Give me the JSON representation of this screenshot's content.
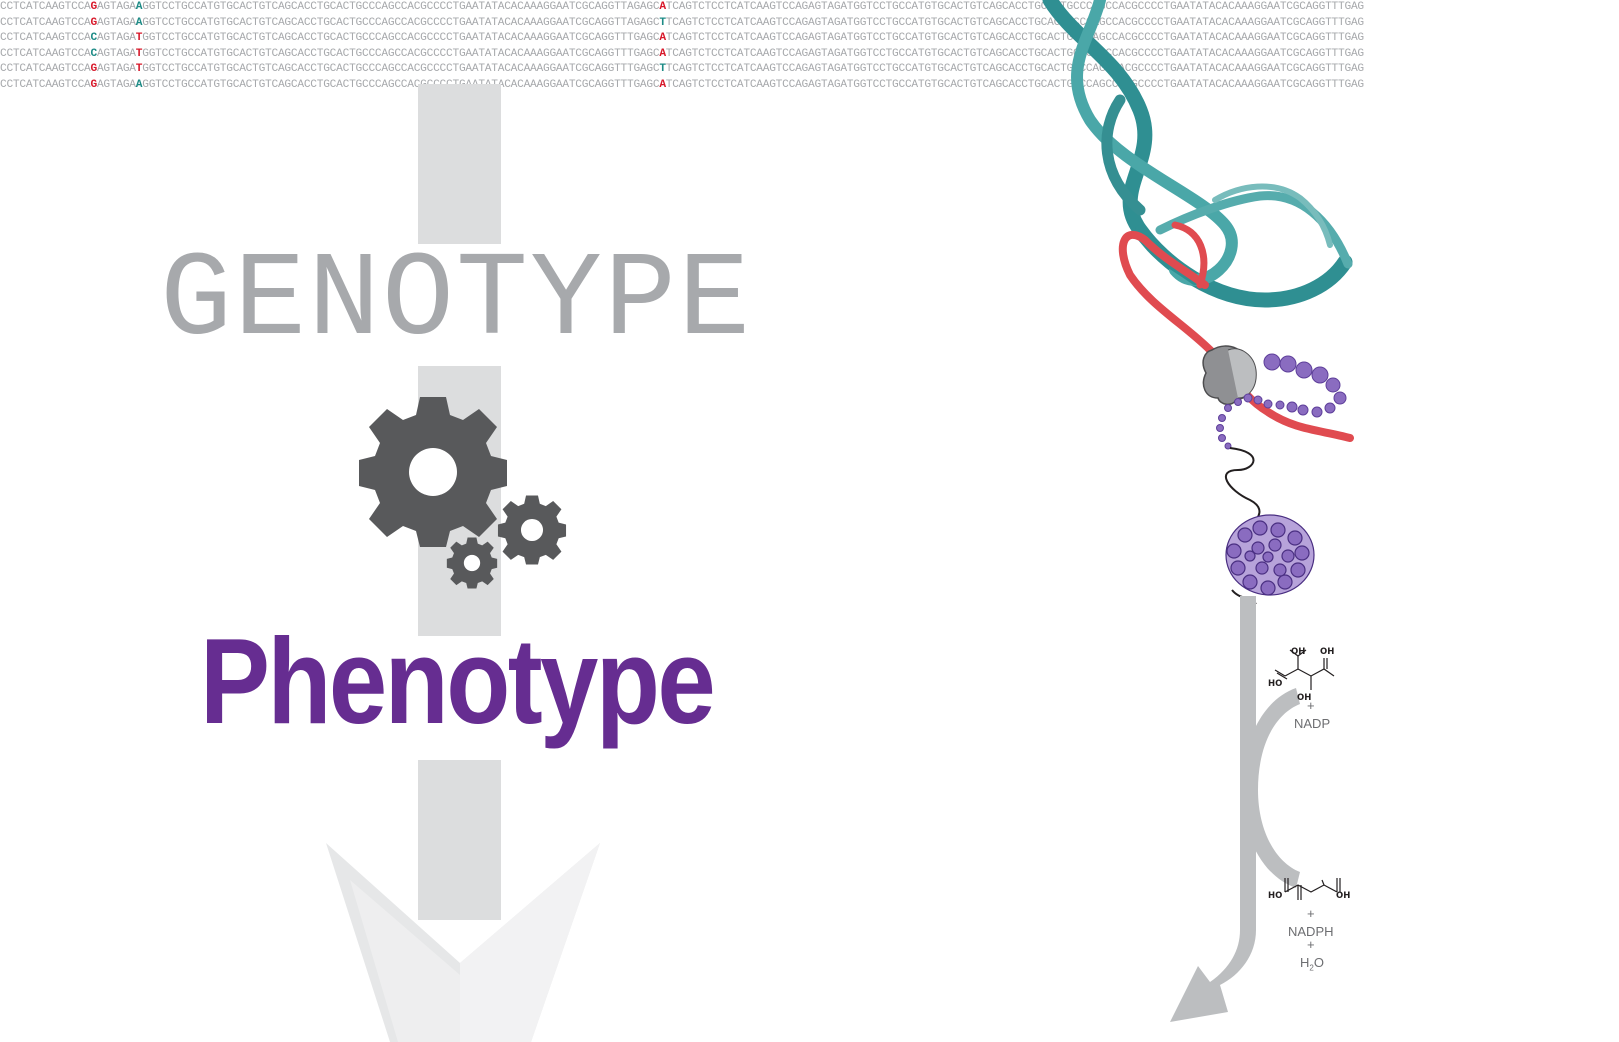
{
  "sequence_lines": [
    {
      "pre": "CCTCATCAAGTCCA",
      "m1": "G",
      "mid": "AGTAGA",
      "m2": "A",
      "post": "GGTCCTGCCATGTGCACTGTCAGCACCTGCACTGCCCAGCCACGCCCCTGAATATACACAAAGGAATCGCAGGTTAGAGC",
      "m3": "A",
      "tail": "TCAGTCTCCTCATCAAGTCCAGAGTAGATGGTCCTGCCATGTGCACTGTCAGCACCTGCACTGCCCAGCCACGCCCCTGAATATACACAAAGGAATCGCAGGTTTGAG"
    },
    {
      "pre": "CCTCATCAAGTCCA",
      "m1": "G",
      "mid": "AGTAGA",
      "m2": "A",
      "post": "GGTCCTGCCATGTGCACTGTCAGCACCTGCACTGCCCAGCCACGCCCCTGAATATACACAAAGGAATCGCAGGTTAGAGC",
      "m3": "T",
      "tail": "TCAGTCTCCTCATCAAGTCCAGAGTAGATGGTCCTGCCATGTGCACTGTCAGCACCTGCACTGCCCAGCCACGCCCCTGAATATACACAAAGGAATCGCAGGTTTGAG"
    },
    {
      "pre": "CCTCATCAAGTCCA",
      "m1": "C",
      "mid": "AGTAGA",
      "m2": "T",
      "post": "GGTCCTGCCATGTGCACTGTCAGCACCTGCACTGCCCAGCCACGCCCCTGAATATACACAAAGGAATCGCAGGTTTGAGC",
      "m3": "A",
      "tail": "TCAGTCTCCTCATCAAGTCCAGAGTAGATGGTCCTGCCATGTGCACTGTCAGCACCTGCACTGCCCAGCCACGCCCCTGAATATACACAAAGGAATCGCAGGTTTGAG"
    },
    {
      "pre": "CCTCATCAAGTCCA",
      "m1": "C",
      "mid": "AGTAGA",
      "m2": "T",
      "post": "GGTCCTGCCATGTGCACTGTCAGCACCTGCACTGCCCAGCCACGCCCCTGAATATACACAAAGGAATCGCAGGTTTGAGC",
      "m3": "A",
      "tail": "TCAGTCTCCTCATCAAGTCCAGAGTAGATGGTCCTGCCATGTGCACTGTCAGCACCTGCACTGCCCAGCCACGCCCCTGAATATACACAAAGGAATCGCAGGTTTGAG"
    },
    {
      "pre": "CCTCATCAAGTCCA",
      "m1": "G",
      "mid": "AGTAGA",
      "m2": "T",
      "post": "GGTCCTGCCATGTGCACTGTCAGCACCTGCACTGCCCAGCCACGCCCCTGAATATACACAAAGGAATCGCAGGTTTGAGC",
      "m3": "T",
      "tail": "TCAGTCTCCTCATCAAGTCCAGAGTAGATGGTCCTGCCATGTGCACTGTCAGCACCTGCACTGCCCAGCCACGCCCCTGAATATACACAAAGGAATCGCAGGTTTGAG"
    },
    {
      "pre": "CCTCATCAAGTCCA",
      "m1": "G",
      "mid": "AGTAGA",
      "m2": "A",
      "post": "GGTCCTGCCATGTGCACTGTCAGCACCTGCACTGCCCAGCCACGCCCCTGAATATACACAAAGGAATCGCAGGTTTGAGC",
      "m3": "A",
      "tail": "TCAGTCTCCTCATCAAGTCCAGAGTAGATGGTCCTGCCATGTGCACTGTCAGCACCTGCACTGCCCAGCCACGCCCCTGAATATACACAAAGGAATCGCAGGTTTGAG"
    }
  ],
  "colors": {
    "sequence_text": "#a7a9ac",
    "variant_red": "#d7182a",
    "variant_teal": "#1c8a85",
    "genotype_title": "#a7a9ac",
    "phenotype_title": "#662d91",
    "arrow_gray": "#d9dadb",
    "gear_gray": "#58595b",
    "dna_teal": "#3f9ea0",
    "mrna_red": "#e04b50",
    "protein_purple": "#8a6cc0",
    "pathway_gray": "#bcbec0"
  },
  "titles": {
    "genotype": "GENOTYPE",
    "phenotype": "Phenotype"
  },
  "reaction": {
    "substrate_groups": [
      "HO",
      "OH",
      "OH",
      "OH"
    ],
    "plus_1": "+",
    "cofactor_in": "NADP",
    "product_groups": [
      "HO",
      "OH"
    ],
    "plus_2": "+",
    "cofactor_out": "NADPH",
    "plus_3": "+",
    "water": "H",
    "water_sub": "2",
    "water_o": "O"
  }
}
